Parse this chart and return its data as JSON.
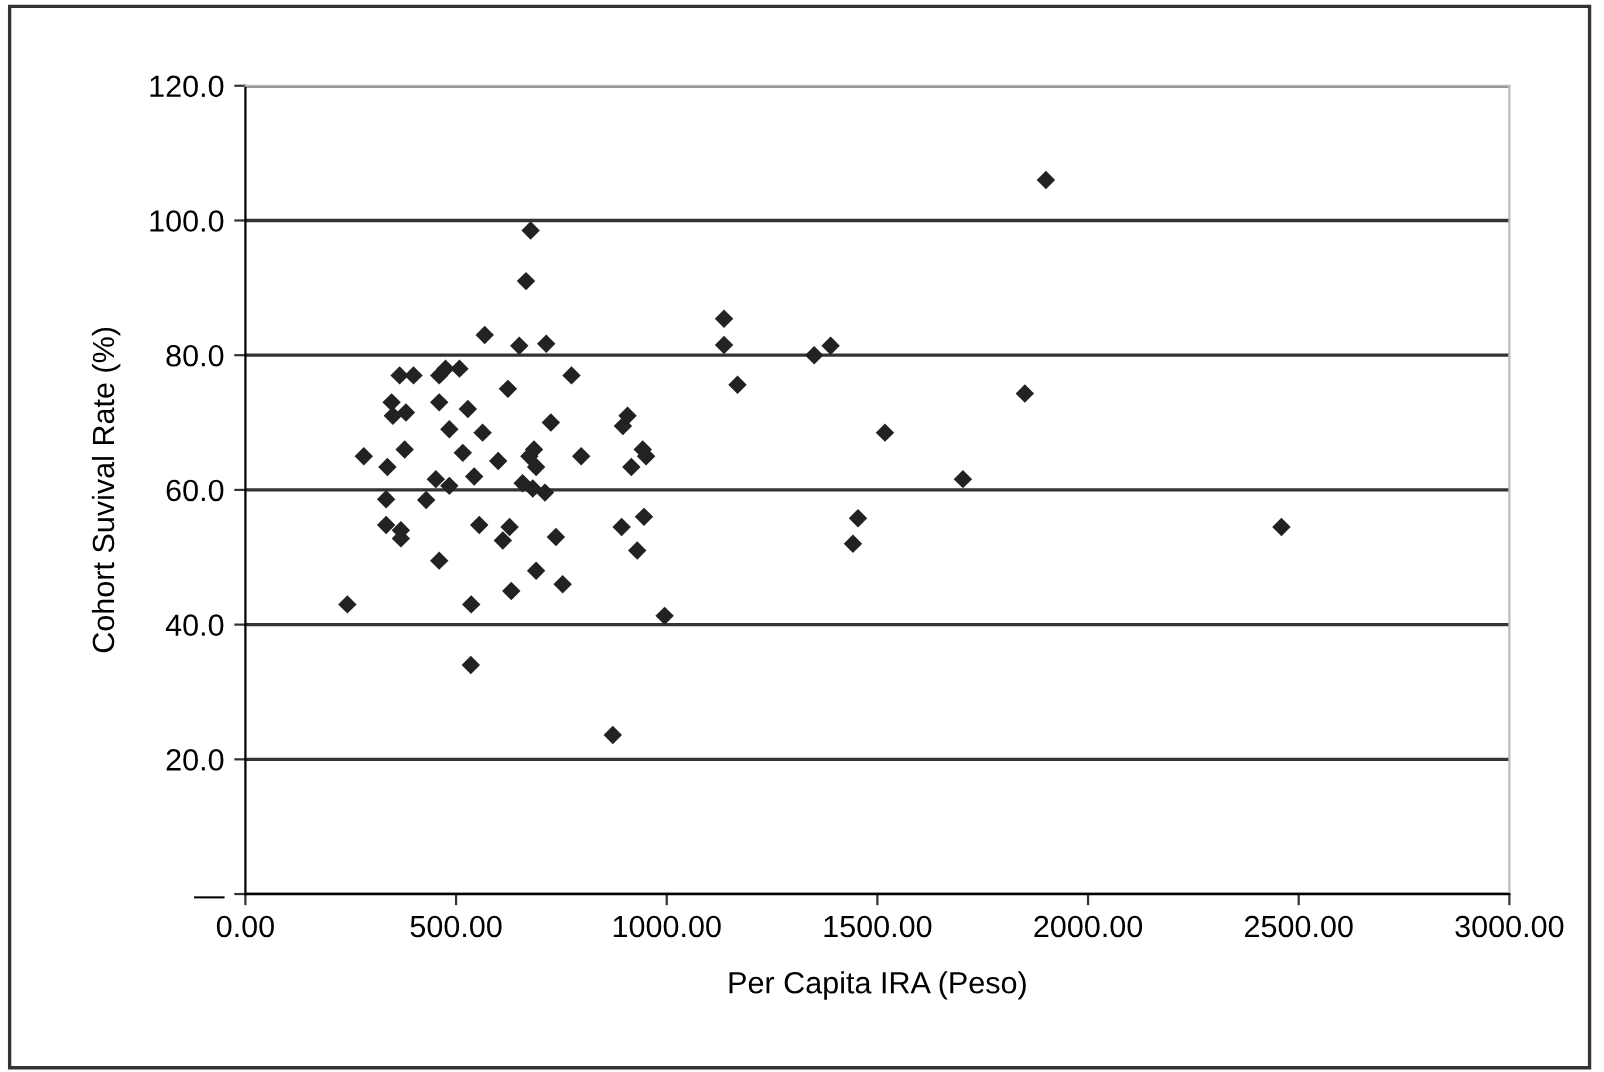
{
  "chart_data": {
    "type": "scatter",
    "xlabel": "Per Capita IRA (Peso)",
    "ylabel": "Cohort Suvival Rate (%)",
    "x": [
      677,
      666,
      568,
      650,
      714,
      366,
      399,
      460,
      508,
      475,
      774,
      623,
      347,
      381,
      350,
      460,
      528,
      484,
      563,
      725,
      907,
      896,
      281,
      378,
      516,
      600,
      685,
      674,
      690,
      797,
      943,
      951,
      337,
      916,
      452,
      484,
      543,
      658,
      682,
      711,
      334,
      429,
      334,
      369,
      369,
      555,
      627,
      611,
      737,
      893,
      946,
      930,
      460,
      690,
      753,
      631,
      242,
      536,
      995,
      535,
      872,
      1136,
      1136,
      1168,
      1350,
      1389,
      1518,
      1703,
      1454,
      1442,
      1850,
      1900,
      2459
    ],
    "values": [
      98.5,
      91,
      83,
      81.4,
      81.7,
      77,
      77,
      77,
      78,
      78,
      77,
      75,
      73,
      71.5,
      71,
      73,
      72,
      69,
      68.5,
      70,
      71,
      69.5,
      65,
      66,
      65.5,
      64.3,
      66,
      65,
      63.4,
      65,
      66,
      65,
      63.4,
      63.4,
      61.6,
      60.6,
      62,
      61,
      60.2,
      59.6,
      58.6,
      58.5,
      54.8,
      54,
      52.8,
      54.8,
      54.5,
      52.5,
      53,
      54.5,
      56,
      51,
      49.5,
      48,
      46,
      45,
      43,
      43,
      41.3,
      34,
      23.6,
      85.4,
      81.5,
      75.6,
      80,
      81.4,
      68.5,
      61.6,
      55.8,
      52,
      74.3,
      106,
      54.5
    ],
    "color": "#222222",
    "marker": "diamond",
    "xlim": [
      0,
      3000
    ],
    "xticks": [
      {
        "value": 0,
        "label": "0.00"
      },
      {
        "value": 500,
        "label": "500.00"
      },
      {
        "value": 1000,
        "label": "1000.00"
      },
      {
        "value": 1500,
        "label": "1500.00"
      },
      {
        "value": 2000,
        "label": "2000.00"
      },
      {
        "value": 2500,
        "label": "2500.00"
      },
      {
        "value": 3000,
        "label": "3000.00"
      }
    ],
    "ylim": [
      0,
      120
    ],
    "yticks": [
      {
        "value": 0,
        "label": "—"
      },
      {
        "value": 20,
        "label": "20.0"
      },
      {
        "value": 40,
        "label": "40.0"
      },
      {
        "value": 60,
        "label": "60.0"
      },
      {
        "value": 80,
        "label": "80.0"
      },
      {
        "value": 100,
        "label": "100.0"
      },
      {
        "value": 120,
        "label": "120.0"
      }
    ],
    "grid": "y"
  }
}
